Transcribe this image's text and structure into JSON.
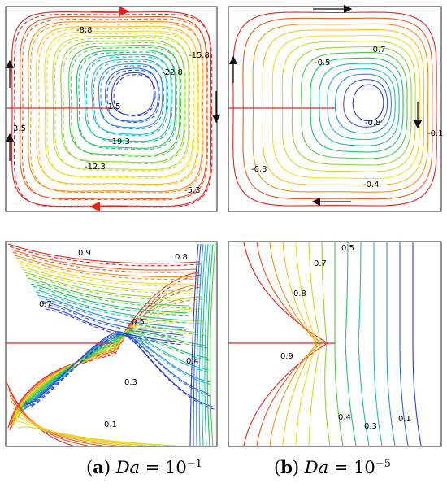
{
  "palette": [
    "#e8221d",
    "#ef5a1c",
    "#f7901b",
    "#fbc21c",
    "#f2e01f",
    "#c6e02a",
    "#8fd636",
    "#4fcb43",
    "#22c26a",
    "#1ec0a6",
    "#23b8d8",
    "#2a8fe0",
    "#2e62d8",
    "#2c3ccc"
  ],
  "panels": [
    {
      "id": "top-left",
      "labels": [
        {
          "t": "-8.8"
        },
        {
          "t": "-15.8"
        },
        {
          "t": "-22.8"
        },
        {
          "t": "-1.5"
        },
        {
          "t": "3.5"
        },
        {
          "t": "-19.3"
        },
        {
          "t": "-12.3"
        },
        {
          "t": "-5.3"
        }
      ]
    },
    {
      "id": "top-right",
      "labels": [
        {
          "t": "-0.7"
        },
        {
          "t": "-0.5"
        },
        {
          "t": "-0.8"
        },
        {
          "t": "-0.3"
        },
        {
          "t": "-0.4"
        },
        {
          "t": "-0.1"
        }
      ]
    },
    {
      "id": "bottom-left",
      "labels": [
        {
          "t": "0.9"
        },
        {
          "t": "0.8"
        },
        {
          "t": "0.7"
        },
        {
          "t": "0.5"
        },
        {
          "t": "0.4"
        },
        {
          "t": "0.3"
        },
        {
          "t": "0.1"
        }
      ]
    },
    {
      "id": "bottom-right",
      "labels": [
        {
          "t": "0.5"
        },
        {
          "t": "0.7"
        },
        {
          "t": "0.8"
        },
        {
          "t": "0.9"
        },
        {
          "t": "0.4"
        },
        {
          "t": "0.3"
        },
        {
          "t": "0.1"
        }
      ]
    }
  ],
  "captions": {
    "a": {
      "letter": "a",
      "variable": "Da",
      "equals": " = 10",
      "exponent": "−1"
    },
    "b": {
      "letter": "b",
      "variable": "Da",
      "equals": " = 10",
      "exponent": "−5"
    }
  }
}
